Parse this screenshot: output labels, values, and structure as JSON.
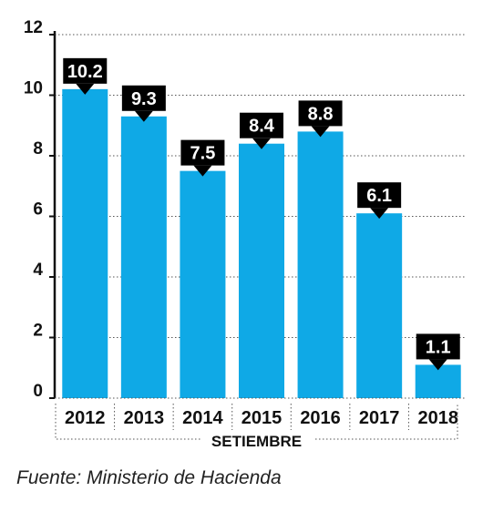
{
  "chart_data": {
    "type": "bar",
    "categories": [
      "2012",
      "2013",
      "2014",
      "2015",
      "2016",
      "2017",
      "2018"
    ],
    "values": [
      10.2,
      9.3,
      7.5,
      8.4,
      8.8,
      6.1,
      1.1
    ],
    "value_labels": [
      "10.2",
      "9.3",
      "7.5",
      "8.4",
      "8.8",
      "6.1",
      "1.1"
    ],
    "y_ticks": [
      "0",
      "2",
      "4",
      "6",
      "8",
      "10",
      "12"
    ],
    "ylim": [
      0,
      12
    ],
    "group_label": "SETIEMBRE",
    "bar_color": "#0fa9e6",
    "label_box_color": "#000000",
    "grid": true,
    "title": "",
    "xlabel": "",
    "ylabel": ""
  },
  "source": "Fuente: Ministerio de Hacienda"
}
